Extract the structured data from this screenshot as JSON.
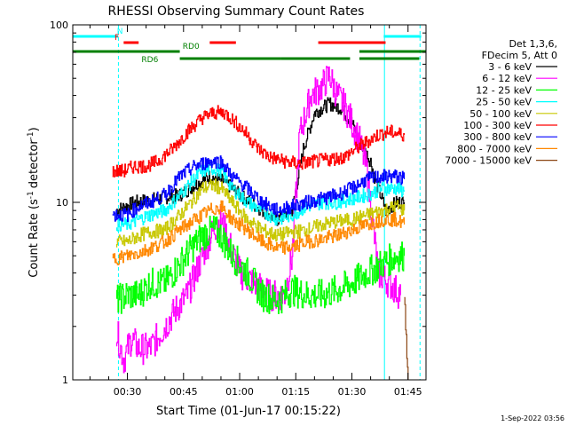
{
  "chart_data": {
    "type": "line",
    "title": "RHESSI Observing Summary Count Rates",
    "xlabel": "Start Time (01-Jun-17 00:15:22)",
    "ylabel": "Count Rate (s",
    "ylabel_sup": "-1",
    "ylabel_tail": "detector",
    "ylabel_end": ")",
    "y_scale": "log",
    "ylim": [
      1,
      100
    ],
    "xlim_min": [
      15.4,
      109.8
    ],
    "y_ticks": [
      {
        "value": 1,
        "label": "1"
      },
      {
        "value": 10,
        "label": "10"
      },
      {
        "value": 100,
        "label": "100"
      }
    ],
    "x_ticks": [
      {
        "value": 30,
        "label": "00:30"
      },
      {
        "value": 45,
        "label": "00:45"
      },
      {
        "value": 60,
        "label": "01:00"
      },
      {
        "value": 75,
        "label": "01:15"
      },
      {
        "value": 90,
        "label": "01:30"
      },
      {
        "value": 105,
        "label": "01:45"
      }
    ],
    "legend_header": [
      "Det 1,3,6,",
      "FDecim 5, Att 0"
    ],
    "legend_placement": "right",
    "timestamp": "1-Sep-2022 03:56",
    "series": [
      {
        "name": "3 - 6 keV",
        "color": "#000000",
        "points": [
          [
            27,
            9
          ],
          [
            32,
            10
          ],
          [
            38,
            10.5
          ],
          [
            44,
            11
          ],
          [
            48,
            12.5
          ],
          [
            52,
            14
          ],
          [
            56,
            13
          ],
          [
            60,
            11
          ],
          [
            66,
            9
          ],
          [
            70,
            8
          ],
          [
            74,
            9
          ],
          [
            77,
            20
          ],
          [
            80,
            32
          ],
          [
            84,
            36
          ],
          [
            87,
            34
          ],
          [
            90,
            28
          ],
          [
            92,
            22
          ],
          [
            95,
            17
          ],
          [
            96,
            14
          ],
          [
            99,
            9
          ],
          [
            102,
            10
          ],
          [
            104,
            10
          ]
        ]
      },
      {
        "name": "6 - 12 keV",
        "color": "#ff00ff",
        "points": [
          [
            27,
            1.9
          ],
          [
            29,
            1.3
          ],
          [
            31,
            1.7
          ],
          [
            33,
            1.5
          ],
          [
            36,
            1.5
          ],
          [
            40,
            2
          ],
          [
            43,
            2.5
          ],
          [
            46,
            3
          ],
          [
            50,
            5
          ],
          [
            53,
            7
          ],
          [
            55,
            8
          ],
          [
            57,
            6
          ],
          [
            60,
            4
          ],
          [
            64,
            3.5
          ],
          [
            68,
            3
          ],
          [
            72,
            3
          ],
          [
            74,
            5
          ],
          [
            76,
            24
          ],
          [
            79,
            40
          ],
          [
            82,
            45
          ],
          [
            84,
            52
          ],
          [
            86,
            40
          ],
          [
            88,
            35
          ],
          [
            90,
            28
          ],
          [
            92,
            22
          ],
          [
            94,
            15
          ],
          [
            97,
            4
          ],
          [
            100,
            3.5
          ],
          [
            103,
            3
          ]
        ]
      },
      {
        "name": "12 - 25 keV",
        "color": "#00ff00",
        "points": [
          [
            27,
            2.8
          ],
          [
            30,
            3
          ],
          [
            33,
            3
          ],
          [
            36,
            3.5
          ],
          [
            40,
            3.5
          ],
          [
            44,
            4.5
          ],
          [
            47,
            5.5
          ],
          [
            50,
            6.5
          ],
          [
            53,
            7
          ],
          [
            55,
            6.5
          ],
          [
            58,
            5
          ],
          [
            62,
            4
          ],
          [
            66,
            3
          ],
          [
            70,
            2.8
          ],
          [
            74,
            3.2
          ],
          [
            78,
            3
          ],
          [
            82,
            3
          ],
          [
            86,
            3.2
          ],
          [
            90,
            3.5
          ],
          [
            94,
            4
          ],
          [
            98,
            4.5
          ],
          [
            102,
            5
          ],
          [
            104,
            5
          ]
        ]
      },
      {
        "name": "25 - 50 keV",
        "color": "#00ffff",
        "points": [
          [
            27,
            7.5
          ],
          [
            30,
            7.5
          ],
          [
            33,
            8
          ],
          [
            36,
            8.5
          ],
          [
            40,
            9
          ],
          [
            44,
            11
          ],
          [
            47,
            13
          ],
          [
            50,
            15
          ],
          [
            53,
            15.5
          ],
          [
            55,
            15
          ],
          [
            58,
            12
          ],
          [
            62,
            10
          ],
          [
            66,
            9
          ],
          [
            70,
            8
          ],
          [
            74,
            8.5
          ],
          [
            78,
            9.5
          ],
          [
            82,
            10
          ],
          [
            86,
            10
          ],
          [
            90,
            10.5
          ],
          [
            94,
            11
          ],
          [
            98,
            12
          ],
          [
            102,
            12
          ],
          [
            104,
            11.5
          ]
        ]
      },
      {
        "name": "50 - 100 keV",
        "color": "#c8c800",
        "points": [
          [
            27,
            6
          ],
          [
            30,
            6
          ],
          [
            33,
            6.5
          ],
          [
            36,
            6.8
          ],
          [
            40,
            7
          ],
          [
            44,
            8.5
          ],
          [
            47,
            10
          ],
          [
            50,
            12
          ],
          [
            53,
            12.5
          ],
          [
            55,
            12
          ],
          [
            58,
            10
          ],
          [
            62,
            8
          ],
          [
            66,
            7
          ],
          [
            70,
            6.5
          ],
          [
            74,
            6.8
          ],
          [
            78,
            7
          ],
          [
            82,
            7.5
          ],
          [
            86,
            7.8
          ],
          [
            90,
            8
          ],
          [
            94,
            8.5
          ],
          [
            98,
            9
          ],
          [
            102,
            9.5
          ],
          [
            104,
            9
          ]
        ]
      },
      {
        "name": "100 - 300 keV",
        "color": "#ff0000",
        "points": [
          [
            26,
            15
          ],
          [
            29,
            15
          ],
          [
            32,
            16
          ],
          [
            35,
            16
          ],
          [
            38,
            17
          ],
          [
            42,
            20
          ],
          [
            46,
            25
          ],
          [
            50,
            30
          ],
          [
            53,
            32
          ],
          [
            56,
            32
          ],
          [
            59,
            28
          ],
          [
            62,
            24
          ],
          [
            65,
            20
          ],
          [
            68,
            18
          ],
          [
            72,
            17
          ],
          [
            76,
            16.5
          ],
          [
            80,
            17
          ],
          [
            84,
            17.5
          ],
          [
            88,
            18
          ],
          [
            91,
            20
          ],
          [
            94,
            22
          ],
          [
            97,
            24
          ],
          [
            100,
            25
          ],
          [
            104,
            24
          ]
        ]
      },
      {
        "name": "300 - 800 keV",
        "color": "#0000ff",
        "points": [
          [
            26,
            8.5
          ],
          [
            30,
            8.5
          ],
          [
            33,
            9.5
          ],
          [
            36,
            10
          ],
          [
            40,
            11
          ],
          [
            44,
            14
          ],
          [
            48,
            16
          ],
          [
            52,
            17
          ],
          [
            55,
            17
          ],
          [
            58,
            14
          ],
          [
            62,
            12
          ],
          [
            66,
            10
          ],
          [
            70,
            9
          ],
          [
            74,
            9.5
          ],
          [
            78,
            10
          ],
          [
            82,
            10.5
          ],
          [
            86,
            11
          ],
          [
            90,
            12
          ],
          [
            94,
            13.5
          ],
          [
            98,
            14
          ],
          [
            102,
            14
          ],
          [
            104,
            13.5
          ]
        ]
      },
      {
        "name": "800 - 7000 keV",
        "color": "#ff8800",
        "points": [
          [
            26,
            4.8
          ],
          [
            30,
            5
          ],
          [
            33,
            5.2
          ],
          [
            36,
            5.5
          ],
          [
            40,
            6
          ],
          [
            44,
            7
          ],
          [
            48,
            8
          ],
          [
            52,
            9
          ],
          [
            55,
            9.5
          ],
          [
            58,
            8
          ],
          [
            62,
            7
          ],
          [
            66,
            6
          ],
          [
            70,
            5.5
          ],
          [
            74,
            5.6
          ],
          [
            78,
            6
          ],
          [
            82,
            6.2
          ],
          [
            86,
            6.5
          ],
          [
            90,
            7
          ],
          [
            94,
            7.5
          ],
          [
            98,
            8
          ],
          [
            102,
            8
          ],
          [
            104,
            7.5
          ]
        ]
      },
      {
        "name": "7000 - 15000 keV",
        "color": "#8b4513",
        "points": [
          [
            104,
            3
          ],
          [
            105,
            1
          ]
        ]
      }
    ],
    "flags": [
      {
        "label": "N",
        "color": "#00ffff",
        "row": "top",
        "segments": [
          [
            15.4,
            27.5
          ],
          [
            98.5,
            108.5
          ]
        ],
        "label_at": 28
      },
      {
        "label": "F",
        "color": "#ff0000",
        "row": "mid",
        "segments": [
          [
            29,
            33
          ],
          [
            52,
            59
          ],
          [
            81,
            99
          ]
        ],
        "label_at": 27.2
      },
      {
        "label": "RD0",
        "color": "#008000",
        "row": "low",
        "segments": [
          [
            15.4,
            44
          ],
          [
            92,
            109.8
          ]
        ],
        "label_at": 47
      },
      {
        "label": "RD6",
        "color": "#008000",
        "row": "lower",
        "segments": [
          [
            44,
            71
          ],
          [
            71,
            89.5
          ],
          [
            92,
            108
          ]
        ],
        "label_at": 36
      }
    ],
    "vlines": [
      {
        "x": 15.4,
        "color": "#00ffff",
        "style": "solid"
      },
      {
        "x": 27.6,
        "color": "#00ffff",
        "style": "dashed"
      },
      {
        "x": 98.7,
        "color": "#00ffff",
        "style": "solid"
      },
      {
        "x": 108.2,
        "color": "#00ffff",
        "style": "dashed"
      }
    ]
  }
}
